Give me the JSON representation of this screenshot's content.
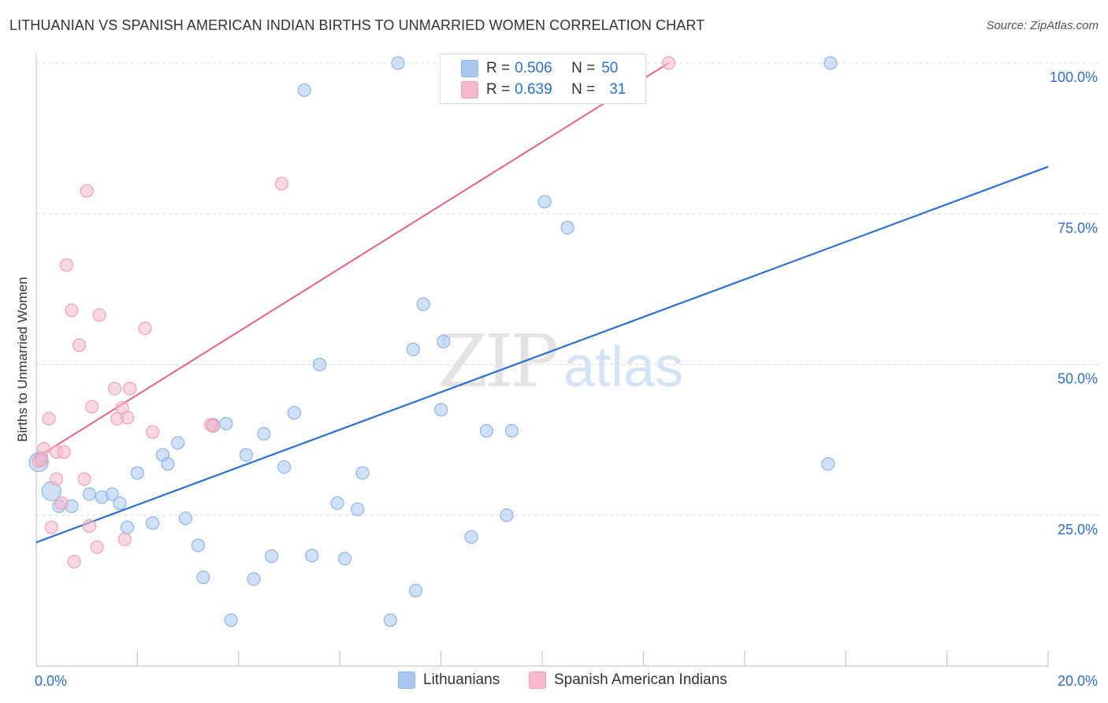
{
  "title": "LITHUANIAN VS SPANISH AMERICAN INDIAN BIRTHS TO UNMARRIED WOMEN CORRELATION CHART",
  "source": "Source: ZipAtlas.com",
  "watermark": {
    "zip": "ZIP",
    "atlas": "atlas"
  },
  "colors": {
    "blue_fill": "#a9c6f0",
    "blue_stroke": "#8fb4e6",
    "blue_line": "#2f6fcc",
    "pink_fill": "#f6b8cb",
    "pink_stroke": "#f0a0b8",
    "pink_line": "#e46b92",
    "value_text": "#2f6fcc",
    "grid": "#d9d9d9"
  },
  "stats": [
    {
      "r_label": "R =",
      "r": "0.506",
      "n_label": "N =",
      "n": "50",
      "color": "#a9c6f0"
    },
    {
      "r_label": "R =",
      "r": "0.639",
      "n_label": "N =",
      "n": "31",
      "color": "#f6b8cb"
    }
  ],
  "legend": [
    {
      "label": "Lithuanians",
      "color": "#a9c6f0"
    },
    {
      "label": "Spanish American Indians",
      "color": "#f6b8cb"
    }
  ],
  "chart_data": {
    "type": "scatter",
    "xlabel": "",
    "ylabel": "Births to Unmarried Women",
    "xlim": [
      0,
      20
    ],
    "ylim": [
      0,
      100
    ],
    "x_tick_labels": [
      {
        "value": 0,
        "label": "0.0%"
      },
      {
        "value": 20,
        "label": "20.0%"
      }
    ],
    "y_tick_labels": [
      {
        "value": 25,
        "label": "25.0%"
      },
      {
        "value": 50,
        "label": "50.0%"
      },
      {
        "value": 75,
        "label": "75.0%"
      },
      {
        "value": 100,
        "label": "100.0%"
      }
    ],
    "grid": true,
    "legend_position": "bottom",
    "series": [
      {
        "name": "Lithuanians",
        "color": "#a9c6f0",
        "trendline": {
          "x": [
            0,
            20
          ],
          "y": [
            20.5,
            82.8
          ]
        },
        "points": [
          {
            "x": 0.05,
            "y": 33.8,
            "big": true
          },
          {
            "x": 0.3,
            "y": 29.0,
            "big": true
          },
          {
            "x": 0.45,
            "y": 26.5
          },
          {
            "x": 0.7,
            "y": 26.5
          },
          {
            "x": 1.3,
            "y": 28.0
          },
          {
            "x": 1.05,
            "y": 28.5
          },
          {
            "x": 1.5,
            "y": 28.5
          },
          {
            "x": 1.65,
            "y": 27.0
          },
          {
            "x": 1.8,
            "y": 23.0
          },
          {
            "x": 2.0,
            "y": 32.0
          },
          {
            "x": 2.3,
            "y": 23.7
          },
          {
            "x": 2.5,
            "y": 35.0
          },
          {
            "x": 2.6,
            "y": 33.5
          },
          {
            "x": 2.8,
            "y": 37.0
          },
          {
            "x": 2.95,
            "y": 24.5
          },
          {
            "x": 3.2,
            "y": 20.0
          },
          {
            "x": 3.3,
            "y": 14.7
          },
          {
            "x": 3.5,
            "y": 40.0
          },
          {
            "x": 3.75,
            "y": 40.2
          },
          {
            "x": 3.85,
            "y": 7.6
          },
          {
            "x": 4.15,
            "y": 35.0
          },
          {
            "x": 4.3,
            "y": 14.4
          },
          {
            "x": 4.5,
            "y": 38.5
          },
          {
            "x": 4.65,
            "y": 18.2
          },
          {
            "x": 4.9,
            "y": 33.0
          },
          {
            "x": 5.1,
            "y": 42.0
          },
          {
            "x": 5.3,
            "y": 95.5
          },
          {
            "x": 5.45,
            "y": 18.3
          },
          {
            "x": 5.6,
            "y": 50.0
          },
          {
            "x": 5.95,
            "y": 27.0
          },
          {
            "x": 6.1,
            "y": 17.8
          },
          {
            "x": 6.35,
            "y": 26.0
          },
          {
            "x": 6.45,
            "y": 32.0
          },
          {
            "x": 7.0,
            "y": 7.6
          },
          {
            "x": 7.15,
            "y": 100.0
          },
          {
            "x": 7.45,
            "y": 52.5
          },
          {
            "x": 7.5,
            "y": 12.5
          },
          {
            "x": 7.65,
            "y": 60.0
          },
          {
            "x": 8.0,
            "y": 42.5
          },
          {
            "x": 8.05,
            "y": 53.8
          },
          {
            "x": 8.6,
            "y": 21.4
          },
          {
            "x": 8.9,
            "y": 39.0
          },
          {
            "x": 9.3,
            "y": 25.0
          },
          {
            "x": 9.4,
            "y": 39.0
          },
          {
            "x": 10.05,
            "y": 77.0
          },
          {
            "x": 10.5,
            "y": 72.7
          },
          {
            "x": 11.9,
            "y": 100.0
          },
          {
            "x": 15.7,
            "y": 100.0
          },
          {
            "x": 15.65,
            "y": 33.5
          },
          {
            "x": 0.1,
            "y": 34.5
          }
        ]
      },
      {
        "name": "Spanish American Indians",
        "color": "#f6b8cb",
        "trendline": {
          "x": [
            0,
            12.5
          ],
          "y": [
            34.5,
            100.0
          ]
        },
        "points": [
          {
            "x": 0.05,
            "y": 34.0
          },
          {
            "x": 0.15,
            "y": 36.0
          },
          {
            "x": 0.25,
            "y": 41.0
          },
          {
            "x": 0.3,
            "y": 23.0
          },
          {
            "x": 0.4,
            "y": 31.0
          },
          {
            "x": 0.5,
            "y": 27.0
          },
          {
            "x": 0.4,
            "y": 35.5
          },
          {
            "x": 0.55,
            "y": 35.5
          },
          {
            "x": 0.6,
            "y": 66.5
          },
          {
            "x": 0.7,
            "y": 59.0
          },
          {
            "x": 0.75,
            "y": 17.3
          },
          {
            "x": 0.85,
            "y": 53.2
          },
          {
            "x": 0.95,
            "y": 31.0
          },
          {
            "x": 1.0,
            "y": 78.8
          },
          {
            "x": 1.05,
            "y": 23.2
          },
          {
            "x": 1.1,
            "y": 43.0
          },
          {
            "x": 1.2,
            "y": 19.7
          },
          {
            "x": 1.25,
            "y": 58.2
          },
          {
            "x": 1.55,
            "y": 46.0
          },
          {
            "x": 1.6,
            "y": 41.0
          },
          {
            "x": 1.7,
            "y": 42.8
          },
          {
            "x": 1.75,
            "y": 21.0
          },
          {
            "x": 1.8,
            "y": 41.2
          },
          {
            "x": 1.85,
            "y": 46.0
          },
          {
            "x": 2.15,
            "y": 56.0
          },
          {
            "x": 2.3,
            "y": 38.8
          },
          {
            "x": 3.45,
            "y": 40.0
          },
          {
            "x": 3.5,
            "y": 39.8
          },
          {
            "x": 4.85,
            "y": 80.0
          },
          {
            "x": 12.5,
            "y": 100.0
          },
          {
            "x": 0.1,
            "y": 34.2
          }
        ]
      }
    ]
  }
}
